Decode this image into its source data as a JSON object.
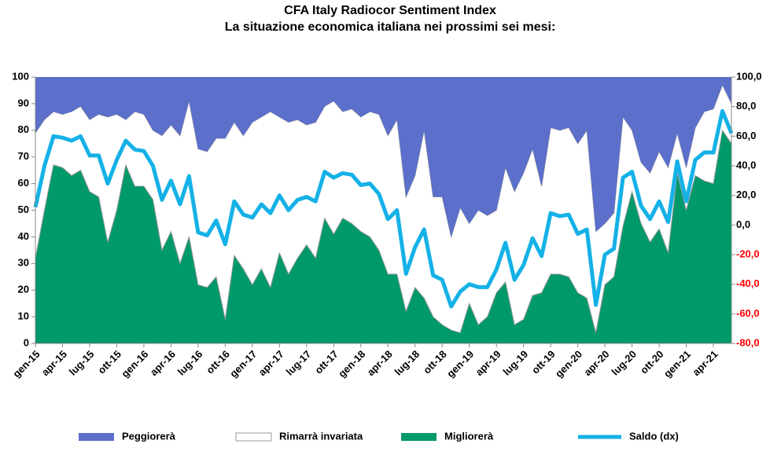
{
  "chart_data": {
    "type": "stacked_area",
    "title": "CFA Italy  Radiocor Sentiment Index",
    "subtitle": "La situazione economica italiana nei prossimi sei mesi:",
    "categories": [
      "gen-15",
      null,
      null,
      "apr-15",
      null,
      null,
      "lug-15",
      null,
      null,
      "ott-15",
      null,
      null,
      "gen-16",
      null,
      null,
      "apr-16",
      null,
      null,
      "lug-16",
      null,
      null,
      "ott-16",
      null,
      null,
      "gen-17",
      null,
      null,
      "apr-17",
      null,
      null,
      "lug-17",
      null,
      null,
      "ott-17",
      null,
      null,
      "gen-18",
      null,
      null,
      "apr-18",
      null,
      null,
      "lug-18",
      null,
      null,
      "ott-18",
      null,
      null,
      "gen-19",
      null,
      null,
      "apr-19",
      null,
      null,
      "lug-19",
      null,
      null,
      "ott-19",
      null,
      null,
      "gen-20",
      null,
      null,
      "apr-20",
      null,
      null,
      "lug-20",
      null,
      null,
      "ott-20",
      null,
      null,
      "gen-21",
      null,
      null,
      "apr-21",
      null,
      null
    ],
    "series": [
      {
        "name": "Peggiorerà",
        "type": "area",
        "color": "#5b6fcb",
        "values": [
          21,
          16,
          13,
          14,
          13,
          11,
          16,
          14,
          15,
          14,
          16,
          13,
          14,
          20,
          22,
          18,
          22,
          9,
          27,
          28,
          23,
          23,
          17,
          22,
          17,
          15,
          13,
          15,
          17,
          16,
          18,
          17,
          11,
          9,
          13,
          12,
          15,
          13,
          14,
          22,
          16,
          45,
          37,
          20,
          45,
          45,
          60,
          49,
          55,
          50,
          52,
          50,
          34,
          43,
          36,
          27,
          41,
          19,
          20,
          19,
          25,
          20,
          58,
          55,
          51,
          15,
          20,
          32,
          36,
          28,
          34,
          21,
          34,
          19,
          13,
          12,
          3,
          10
        ]
      },
      {
        "name": "Rimarrà invariata",
        "type": "area",
        "color": "#ffffff",
        "values": [
          47,
          34,
          20,
          20,
          24,
          24,
          27,
          31,
          47,
          36,
          17,
          28,
          27,
          26,
          43,
          40,
          48,
          51,
          51,
          51,
          52,
          68,
          50,
          50,
          61,
          57,
          66,
          51,
          57,
          52,
          45,
          51,
          42,
          50,
          40,
          43,
          43,
          47,
          51,
          52,
          58,
          43,
          42,
          63,
          45,
          48,
          35,
          47,
          30,
          43,
          38,
          31,
          43,
          50,
          55,
          55,
          40,
          55,
          54,
          56,
          56,
          63,
          38,
          23,
          24,
          41,
          23,
          23,
          26,
          29,
          32,
          15,
          16,
          18,
          26,
          28,
          17,
          15
        ]
      },
      {
        "name": "Migliorerà",
        "type": "area",
        "color": "#00996b",
        "values": [
          32,
          50,
          67,
          66,
          63,
          65,
          57,
          55,
          38,
          50,
          67,
          59,
          59,
          54,
          35,
          42,
          30,
          40,
          22,
          21,
          25,
          9,
          33,
          28,
          22,
          28,
          21,
          34,
          26,
          32,
          37,
          32,
          47,
          41,
          47,
          45,
          42,
          40,
          35,
          26,
          26,
          12,
          21,
          17,
          10,
          7,
          5,
          4,
          15,
          7,
          10,
          19,
          23,
          7,
          9,
          18,
          19,
          26,
          26,
          25,
          19,
          17,
          4,
          22,
          25,
          44,
          57,
          45,
          38,
          43,
          34,
          64,
          50,
          63,
          61,
          60,
          80,
          75
        ]
      },
      {
        "name": "Saldo (dx)",
        "type": "line",
        "axis": "y2",
        "color": "#14b1e7",
        "values": [
          12,
          40,
          60,
          59,
          57,
          60,
          47,
          47,
          28,
          44,
          57,
          51,
          50,
          40,
          17,
          30,
          14,
          33,
          -5,
          -7,
          3,
          -13,
          16,
          7,
          5,
          14,
          8,
          20,
          10,
          17,
          19,
          16,
          36,
          32,
          35,
          34,
          27,
          28,
          21,
          4,
          10,
          -33,
          -15,
          -3,
          -34,
          -37,
          -55,
          -45,
          -40,
          -42,
          -42,
          -30,
          -12,
          -37,
          -27,
          -9,
          -21,
          8,
          6,
          7,
          -6,
          -3,
          -54,
          -20,
          -16,
          32,
          36,
          13,
          4,
          16,
          2,
          43,
          16,
          44,
          49,
          49,
          77,
          62
        ]
      }
    ],
    "ylim": [
      0,
      100
    ],
    "yticks": [
      0,
      10,
      20,
      30,
      40,
      50,
      60,
      70,
      80,
      90,
      100
    ],
    "y2lim": [
      -80,
      100
    ],
    "y2ticks": [
      {
        "value": 100,
        "label": "100,0"
      },
      {
        "value": 80,
        "label": "80,0"
      },
      {
        "value": 60,
        "label": "60,0"
      },
      {
        "value": 40,
        "label": "40,0"
      },
      {
        "value": 20,
        "label": "20,0"
      },
      {
        "value": 0,
        "label": "0,0"
      },
      {
        "value": -20,
        "label": "-20,0"
      },
      {
        "value": -40,
        "label": "-40,0"
      },
      {
        "value": -60,
        "label": "-60,0"
      },
      {
        "value": -80,
        "label": "-80,0"
      }
    ],
    "y2_negative_tick_color": "#ff0000",
    "legend": "bottom"
  }
}
